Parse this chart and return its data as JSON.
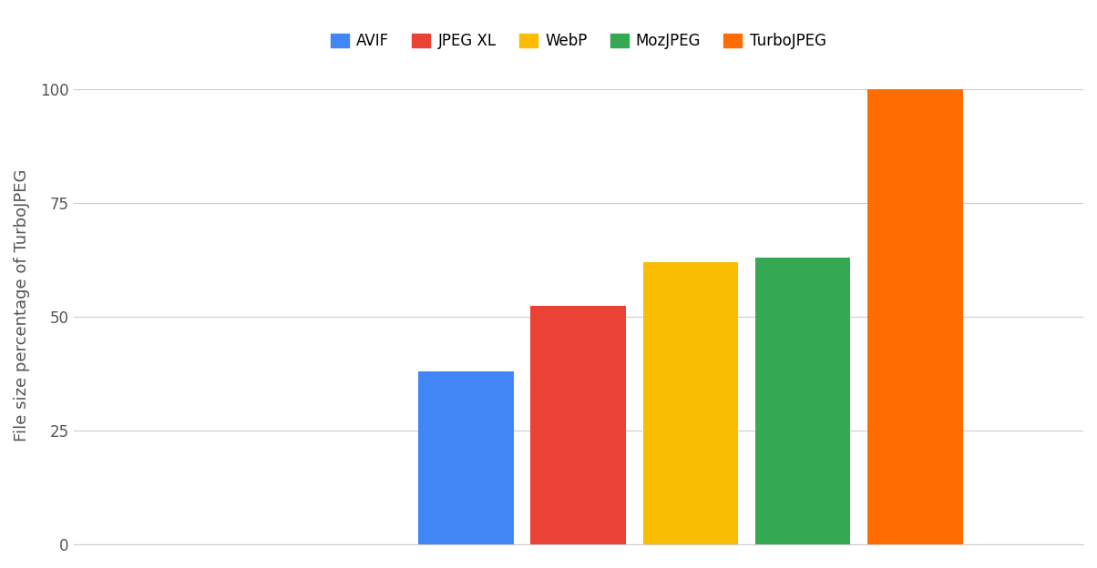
{
  "categories": [
    "AVIF",
    "JPEG XL",
    "WebP",
    "MozJPEG",
    "TurboJPEG"
  ],
  "values": [
    38.0,
    52.5,
    62.0,
    63.0,
    100.0
  ],
  "bar_colors": [
    "#4285F4",
    "#EA4335",
    "#FBBC04",
    "#34A853",
    "#FF6D00"
  ],
  "ylabel": "File size percentage of TurboJPEG",
  "ylim": [
    0,
    105
  ],
  "yticks": [
    0,
    25,
    50,
    75,
    100
  ],
  "legend_labels": [
    "AVIF",
    "JPEG XL",
    "WebP",
    "MozJPEG",
    "TurboJPEG"
  ],
  "legend_colors": [
    "#4285F4",
    "#EA4335",
    "#FBBC04",
    "#34A853",
    "#FF6D00"
  ],
  "background_color": "#ffffff",
  "grid_color": "#cccccc",
  "bar_width": 0.85,
  "bar_positions": [
    4.0,
    5.0,
    6.0,
    7.0,
    8.0
  ],
  "xlim": [
    0.5,
    9.5
  ],
  "ylabel_fontsize": 13,
  "tick_color": "#555555",
  "legend_fontsize": 12
}
